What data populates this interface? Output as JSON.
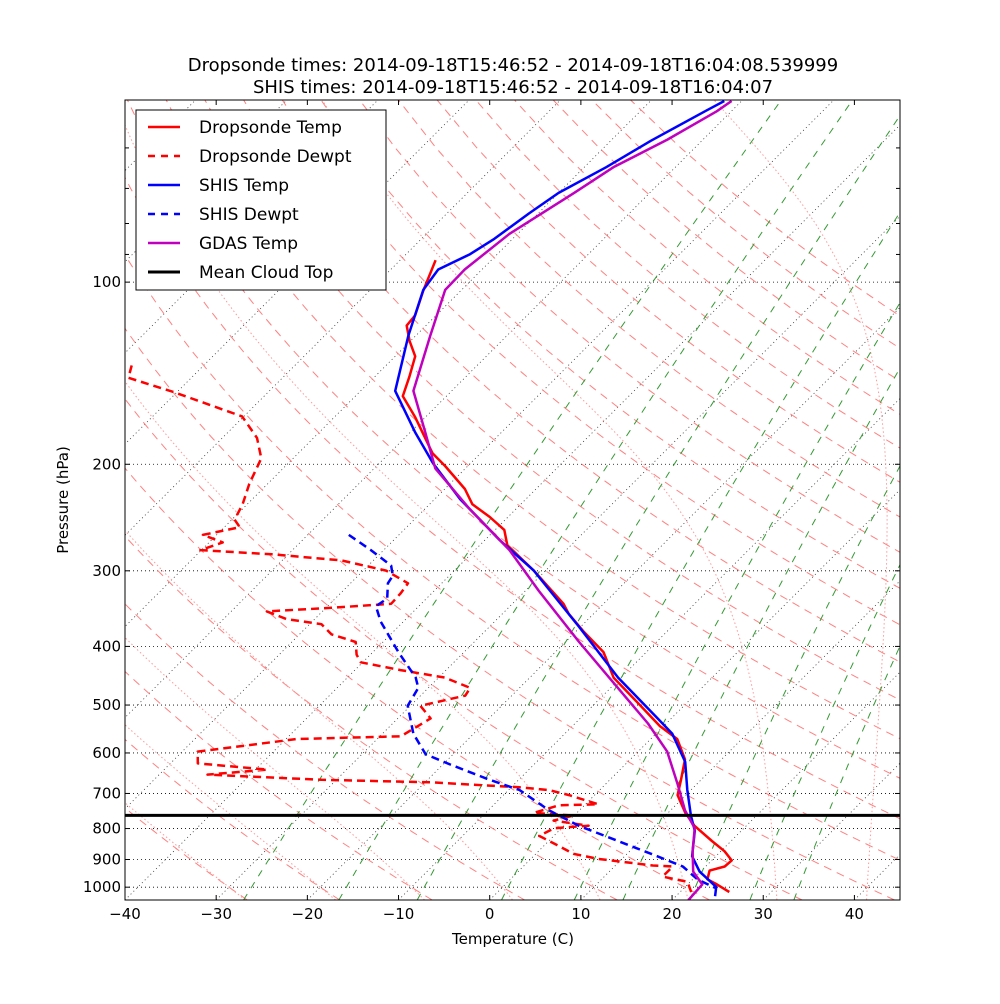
{
  "chart_data": {
    "type": "line",
    "subtype": "skew-T log-p",
    "title": [
      "Dropsonde times: 2014-09-18T15:46:52 - 2014-09-18T16:04:08.539999",
      "SHIS times: 2014-09-18T15:46:52 - 2014-09-18T16:04:07"
    ],
    "xlabel": "Temperature (C)",
    "ylabel": "Pressure (hPa)",
    "xlim": [
      -40,
      45
    ],
    "ylim": [
      1050,
      50
    ],
    "x_ticks": [
      "−40",
      "−30",
      "−20",
      "−10",
      "0",
      "10",
      "20",
      "30",
      "40"
    ],
    "x_tick_values": [
      -40,
      -30,
      -20,
      -10,
      0,
      10,
      20,
      30,
      40
    ],
    "y_ticks": [
      "100",
      "200",
      "300",
      "400",
      "500",
      "600",
      "700",
      "800",
      "900",
      "1000"
    ],
    "y_tick_values": [
      100,
      200,
      300,
      400,
      500,
      600,
      700,
      800,
      900,
      1000
    ],
    "y_minor_ticks": [
      60,
      70,
      80,
      90
    ],
    "grid": true,
    "legend_position": "top-left",
    "background_lines": {
      "dry_adiabats_C": [
        -30,
        -20,
        -10,
        0,
        10,
        20,
        30,
        40,
        50,
        60,
        70,
        80,
        90,
        100,
        110,
        120,
        130,
        140,
        150,
        160,
        170,
        180,
        190,
        200
      ],
      "moist_adiabats_C": [
        -30,
        -20,
        -10,
        0,
        10,
        20,
        30,
        40
      ],
      "mixing_ratios": [
        0.0004,
        0.001,
        0.002,
        0.004,
        0.007,
        0.01,
        0.016,
        0.024,
        0.032
      ],
      "isotherms_C": [
        -200,
        -190,
        -180,
        -170,
        -160,
        -150,
        -140,
        -130,
        -120,
        -110,
        -100,
        -90,
        -80,
        -70,
        -60,
        -50,
        -40,
        -30,
        -20,
        -10,
        0,
        10,
        20,
        30,
        40,
        50
      ]
    },
    "series": [
      {
        "name": "Dropsonde Temp",
        "color": "#ff0000",
        "style": "solid",
        "points_p_T": [
          [
            92.0,
            -76.1
          ],
          [
            103.4,
            -74.1
          ],
          [
            113.5,
            -72.3
          ],
          [
            118.0,
            -72.1
          ],
          [
            125.1,
            -70.1
          ],
          [
            132.6,
            -67.8
          ],
          [
            143.3,
            -66.2
          ],
          [
            154.3,
            -64.8
          ],
          [
            167.3,
            -61.1
          ],
          [
            191.7,
            -55.3
          ],
          [
            201.3,
            -52.5
          ],
          [
            219.7,
            -47.8
          ],
          [
            232.9,
            -45.3
          ],
          [
            244.4,
            -42.0
          ],
          [
            256.7,
            -39.0
          ],
          [
            272.0,
            -37.0
          ],
          [
            299.7,
            -31.3
          ],
          [
            340.1,
            -24.4
          ],
          [
            353.5,
            -22.7
          ],
          [
            378.3,
            -19.1
          ],
          [
            408.8,
            -14.7
          ],
          [
            450.5,
            -10.8
          ],
          [
            496.5,
            -5.3
          ],
          [
            541.8,
            -0.4
          ],
          [
            568.9,
            2.9
          ],
          [
            615.0,
            6.0
          ],
          [
            664.5,
            7.8
          ],
          [
            704.3,
            9.1
          ],
          [
            753.9,
            11.9
          ],
          [
            791.4,
            14.3
          ],
          [
            838.8,
            17.9
          ],
          [
            872.0,
            20.4
          ],
          [
            903.1,
            22.2
          ],
          [
            924.3,
            22.1
          ],
          [
            939.0,
            20.9
          ],
          [
            970.3,
            21.6
          ],
          [
            989.4,
            23.2
          ],
          [
            1018.4,
            25.4
          ]
        ]
      },
      {
        "name": "Dropsonde Dewpt",
        "color": "#ff0000",
        "style": "dashed",
        "points_p_T": [
          [
            137.3,
            -97.9
          ],
          [
            143.9,
            -96.9
          ],
          [
            151.9,
            -90.4
          ],
          [
            166.7,
            -80.2
          ],
          [
            180.9,
            -76.2
          ],
          [
            195.5,
            -73.5
          ],
          [
            215.5,
            -72.0
          ],
          [
            232.9,
            -70.5
          ],
          [
            246.9,
            -69.7
          ],
          [
            254.1,
            -68.3
          ],
          [
            261.7,
            -71.5
          ],
          [
            269.3,
            -68.5
          ],
          [
            277.3,
            -70.1
          ],
          [
            281.7,
            -61.8
          ],
          [
            288.3,
            -53.5
          ],
          [
            299.7,
            -47.5
          ],
          [
            314.6,
            -43.7
          ],
          [
            327.0,
            -43.4
          ],
          [
            340.1,
            -43.3
          ],
          [
            345.3,
            -49.4
          ],
          [
            350.1,
            -56.1
          ],
          [
            360.5,
            -53.1
          ],
          [
            367.6,
            -48.7
          ],
          [
            382.0,
            -46.5
          ],
          [
            393.3,
            -43.0
          ],
          [
            412.9,
            -41.5
          ],
          [
            425.0,
            -40.2
          ],
          [
            437.7,
            -35.0
          ],
          [
            450.5,
            -29.3
          ],
          [
            468.4,
            -25.4
          ],
          [
            482.3,
            -25.1
          ],
          [
            501.4,
            -28.9
          ],
          [
            526.1,
            -26.4
          ],
          [
            563.1,
            -27.7
          ],
          [
            568.9,
            -38.8
          ],
          [
            597.0,
            -48.3
          ],
          [
            624.3,
            -47.0
          ],
          [
            639.2,
            -38.7
          ],
          [
            651.6,
            -44.7
          ],
          [
            664.5,
            -31.6
          ],
          [
            670.8,
            -19.4
          ],
          [
            683.9,
            -9.1
          ],
          [
            690.8,
            -5.6
          ],
          [
            704.3,
            -2.8
          ],
          [
            729.4,
            1.4
          ],
          [
            732.2,
            -2.8
          ],
          [
            753.9,
            -4.7
          ],
          [
            761.2,
            -0.1
          ],
          [
            776.2,
            -1.7
          ],
          [
            791.4,
            2.7
          ],
          [
            798.8,
            -0.8
          ],
          [
            822.7,
            -1.6
          ],
          [
            855.3,
            1.7
          ],
          [
            880.7,
            4.1
          ],
          [
            897.9,
            7.4
          ],
          [
            920.7,
            14.1
          ],
          [
            924.3,
            16.4
          ],
          [
            960.7,
            16.4
          ],
          [
            979.7,
            19.7
          ],
          [
            1028.5,
            21.6
          ]
        ]
      },
      {
        "name": "SHIS Temp",
        "color": "#0000ff",
        "style": "solid",
        "points_p_T": [
          [
            50.2,
            -61.9
          ],
          [
            52.0,
            -62.8
          ],
          [
            58.4,
            -65.6
          ],
          [
            64.6,
            -67.6
          ],
          [
            71.2,
            -70.0
          ],
          [
            77.0,
            -71.0
          ],
          [
            84.8,
            -72.0
          ],
          [
            89.9,
            -73.0
          ],
          [
            95.3,
            -74.8
          ],
          [
            103.0,
            -74.2
          ],
          [
            122.7,
            -70.8
          ],
          [
            151.3,
            -66.2
          ],
          [
            177.4,
            -59.4
          ],
          [
            199.3,
            -54.1
          ],
          [
            228.4,
            -47.2
          ],
          [
            266.8,
            -38.4
          ],
          [
            299.7,
            -31.3
          ],
          [
            371.0,
            -20.2
          ],
          [
            450.5,
            -10.3
          ],
          [
            526.1,
            -1.5
          ],
          [
            557.8,
            1.8
          ],
          [
            620.9,
            6.3
          ],
          [
            690.8,
            9.6
          ],
          [
            761.2,
            12.8
          ],
          [
            806.9,
            14.9
          ],
          [
            889.0,
            17.4
          ],
          [
            942.3,
            19.9
          ],
          [
            998.9,
            23.4
          ],
          [
            1034.9,
            24.3
          ]
        ]
      },
      {
        "name": "SHIS Dewpt",
        "color": "#0000ff",
        "style": "dashed",
        "points_p_T": [
          [
            261.7,
            -55.5
          ],
          [
            277.3,
            -51.4
          ],
          [
            294.0,
            -47.5
          ],
          [
            305.6,
            -46.2
          ],
          [
            314.6,
            -45.9
          ],
          [
            333.4,
            -44.3
          ],
          [
            343.3,
            -44.7
          ],
          [
            363.9,
            -42.5
          ],
          [
            408.8,
            -37.2
          ],
          [
            450.5,
            -32.5
          ],
          [
            468.4,
            -31.1
          ],
          [
            501.4,
            -30.3
          ],
          [
            557.8,
            -26.6
          ],
          [
            603.0,
            -23.0
          ],
          [
            626.9,
            -19.2
          ],
          [
            664.5,
            -13.2
          ],
          [
            690.8,
            -8.8
          ],
          [
            746.7,
            -3.3
          ],
          [
            791.4,
            1.6
          ],
          [
            838.8,
            7.6
          ],
          [
            889.0,
            13.6
          ],
          [
            924.3,
            17.5
          ],
          [
            970.3,
            20.5
          ],
          [
            1002.7,
            23.4
          ]
        ]
      },
      {
        "name": "GDAS Temp",
        "color": "#bf00bf",
        "style": "solid",
        "points_p_T": [
          [
            50.2,
            -61.1
          ],
          [
            52.2,
            -61.6
          ],
          [
            58.1,
            -63.9
          ],
          [
            64.6,
            -66.8
          ],
          [
            71.2,
            -68.3
          ],
          [
            83.2,
            -70.9
          ],
          [
            95.3,
            -71.9
          ],
          [
            103.0,
            -71.8
          ],
          [
            122.7,
            -68.4
          ],
          [
            151.3,
            -64.2
          ],
          [
            177.4,
            -58.3
          ],
          [
            203.2,
            -53.3
          ],
          [
            237.5,
            -45.0
          ],
          [
            277.3,
            -36.2
          ],
          [
            323.9,
            -28.5
          ],
          [
            393.3,
            -18.5
          ],
          [
            468.4,
            -9.2
          ],
          [
            536.4,
            -2.0
          ],
          [
            597.0,
            3.2
          ],
          [
            677.4,
            8.0
          ],
          [
            746.7,
            11.6
          ],
          [
            798.8,
            14.6
          ],
          [
            872.0,
            16.9
          ],
          [
            942.3,
            19.2
          ],
          [
            989.4,
            21.6
          ],
          [
            1050.0,
            21.8
          ]
        ]
      },
      {
        "name": "Mean Cloud Top",
        "color": "#000000",
        "style": "solid",
        "pressure_hPa": 761
      }
    ]
  }
}
